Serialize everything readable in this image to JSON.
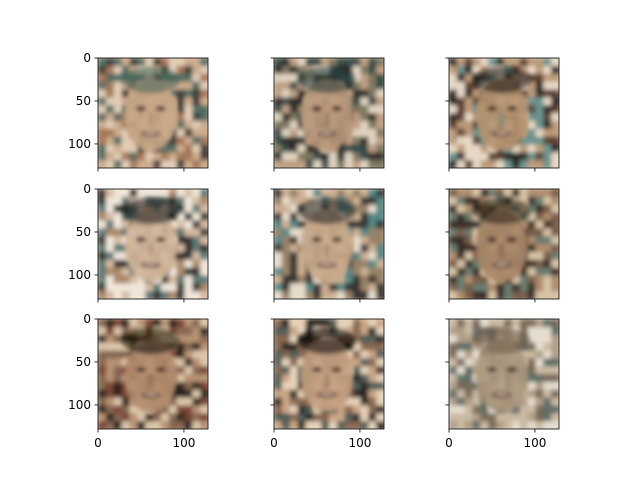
{
  "chart_data": {
    "type": "image-grid",
    "rows": 3,
    "cols": 3,
    "title": "",
    "image_extent": [
      0,
      128
    ],
    "sharex": true,
    "sharey": true,
    "x_ticks": [
      0,
      100
    ],
    "y_ticks": [
      0,
      50,
      100
    ],
    "x_tick_labels_on_row": 3,
    "y_tick_labels_on_col": 1,
    "panels": [
      {
        "row": 1,
        "col": 1,
        "content": "generated face image",
        "tones": [
          "#c9a786",
          "#3f6058",
          "#9c6b4c",
          "#e2cdb6",
          "#2b2b28"
        ]
      },
      {
        "row": 1,
        "col": 2,
        "content": "generated face image",
        "tones": [
          "#b99779",
          "#223b3a",
          "#6e6b52",
          "#e0d4c1",
          "#151515"
        ]
      },
      {
        "row": 1,
        "col": 3,
        "content": "generated face image",
        "tones": [
          "#b5926f",
          "#0f0f0f",
          "#5a8a86",
          "#e8d8c6",
          "#4a2a20"
        ]
      },
      {
        "row": 2,
        "col": 1,
        "content": "generated face image",
        "tones": [
          "#d2b59a",
          "#1a1a1a",
          "#a17b5b",
          "#f0e6d9",
          "#4b6a66"
        ]
      },
      {
        "row": 2,
        "col": 2,
        "content": "generated face image",
        "tones": [
          "#c8a98a",
          "#1c1c1c",
          "#8c7559",
          "#e7dccb",
          "#3f7c7c"
        ]
      },
      {
        "row": 2,
        "col": 3,
        "content": "generated face image",
        "tones": [
          "#a98566",
          "#241b16",
          "#6b4f3b",
          "#d7c3a6",
          "#5a7368"
        ]
      },
      {
        "row": 3,
        "col": 1,
        "content": "generated face image",
        "tones": [
          "#b38b6b",
          "#0e0c0b",
          "#7a5a45",
          "#dcc5a9",
          "#6c3224"
        ]
      },
      {
        "row": 3,
        "col": 2,
        "content": "generated face image",
        "tones": [
          "#c49f7f",
          "#0b0b0b",
          "#7b5a44",
          "#e6d2b8",
          "#3d4f4b"
        ]
      },
      {
        "row": 3,
        "col": 3,
        "content": "generated face image",
        "tones": [
          "#a8957c",
          "#6b5a49",
          "#c7b49b",
          "#e5ddd0",
          "#4d5f59"
        ]
      }
    ]
  }
}
